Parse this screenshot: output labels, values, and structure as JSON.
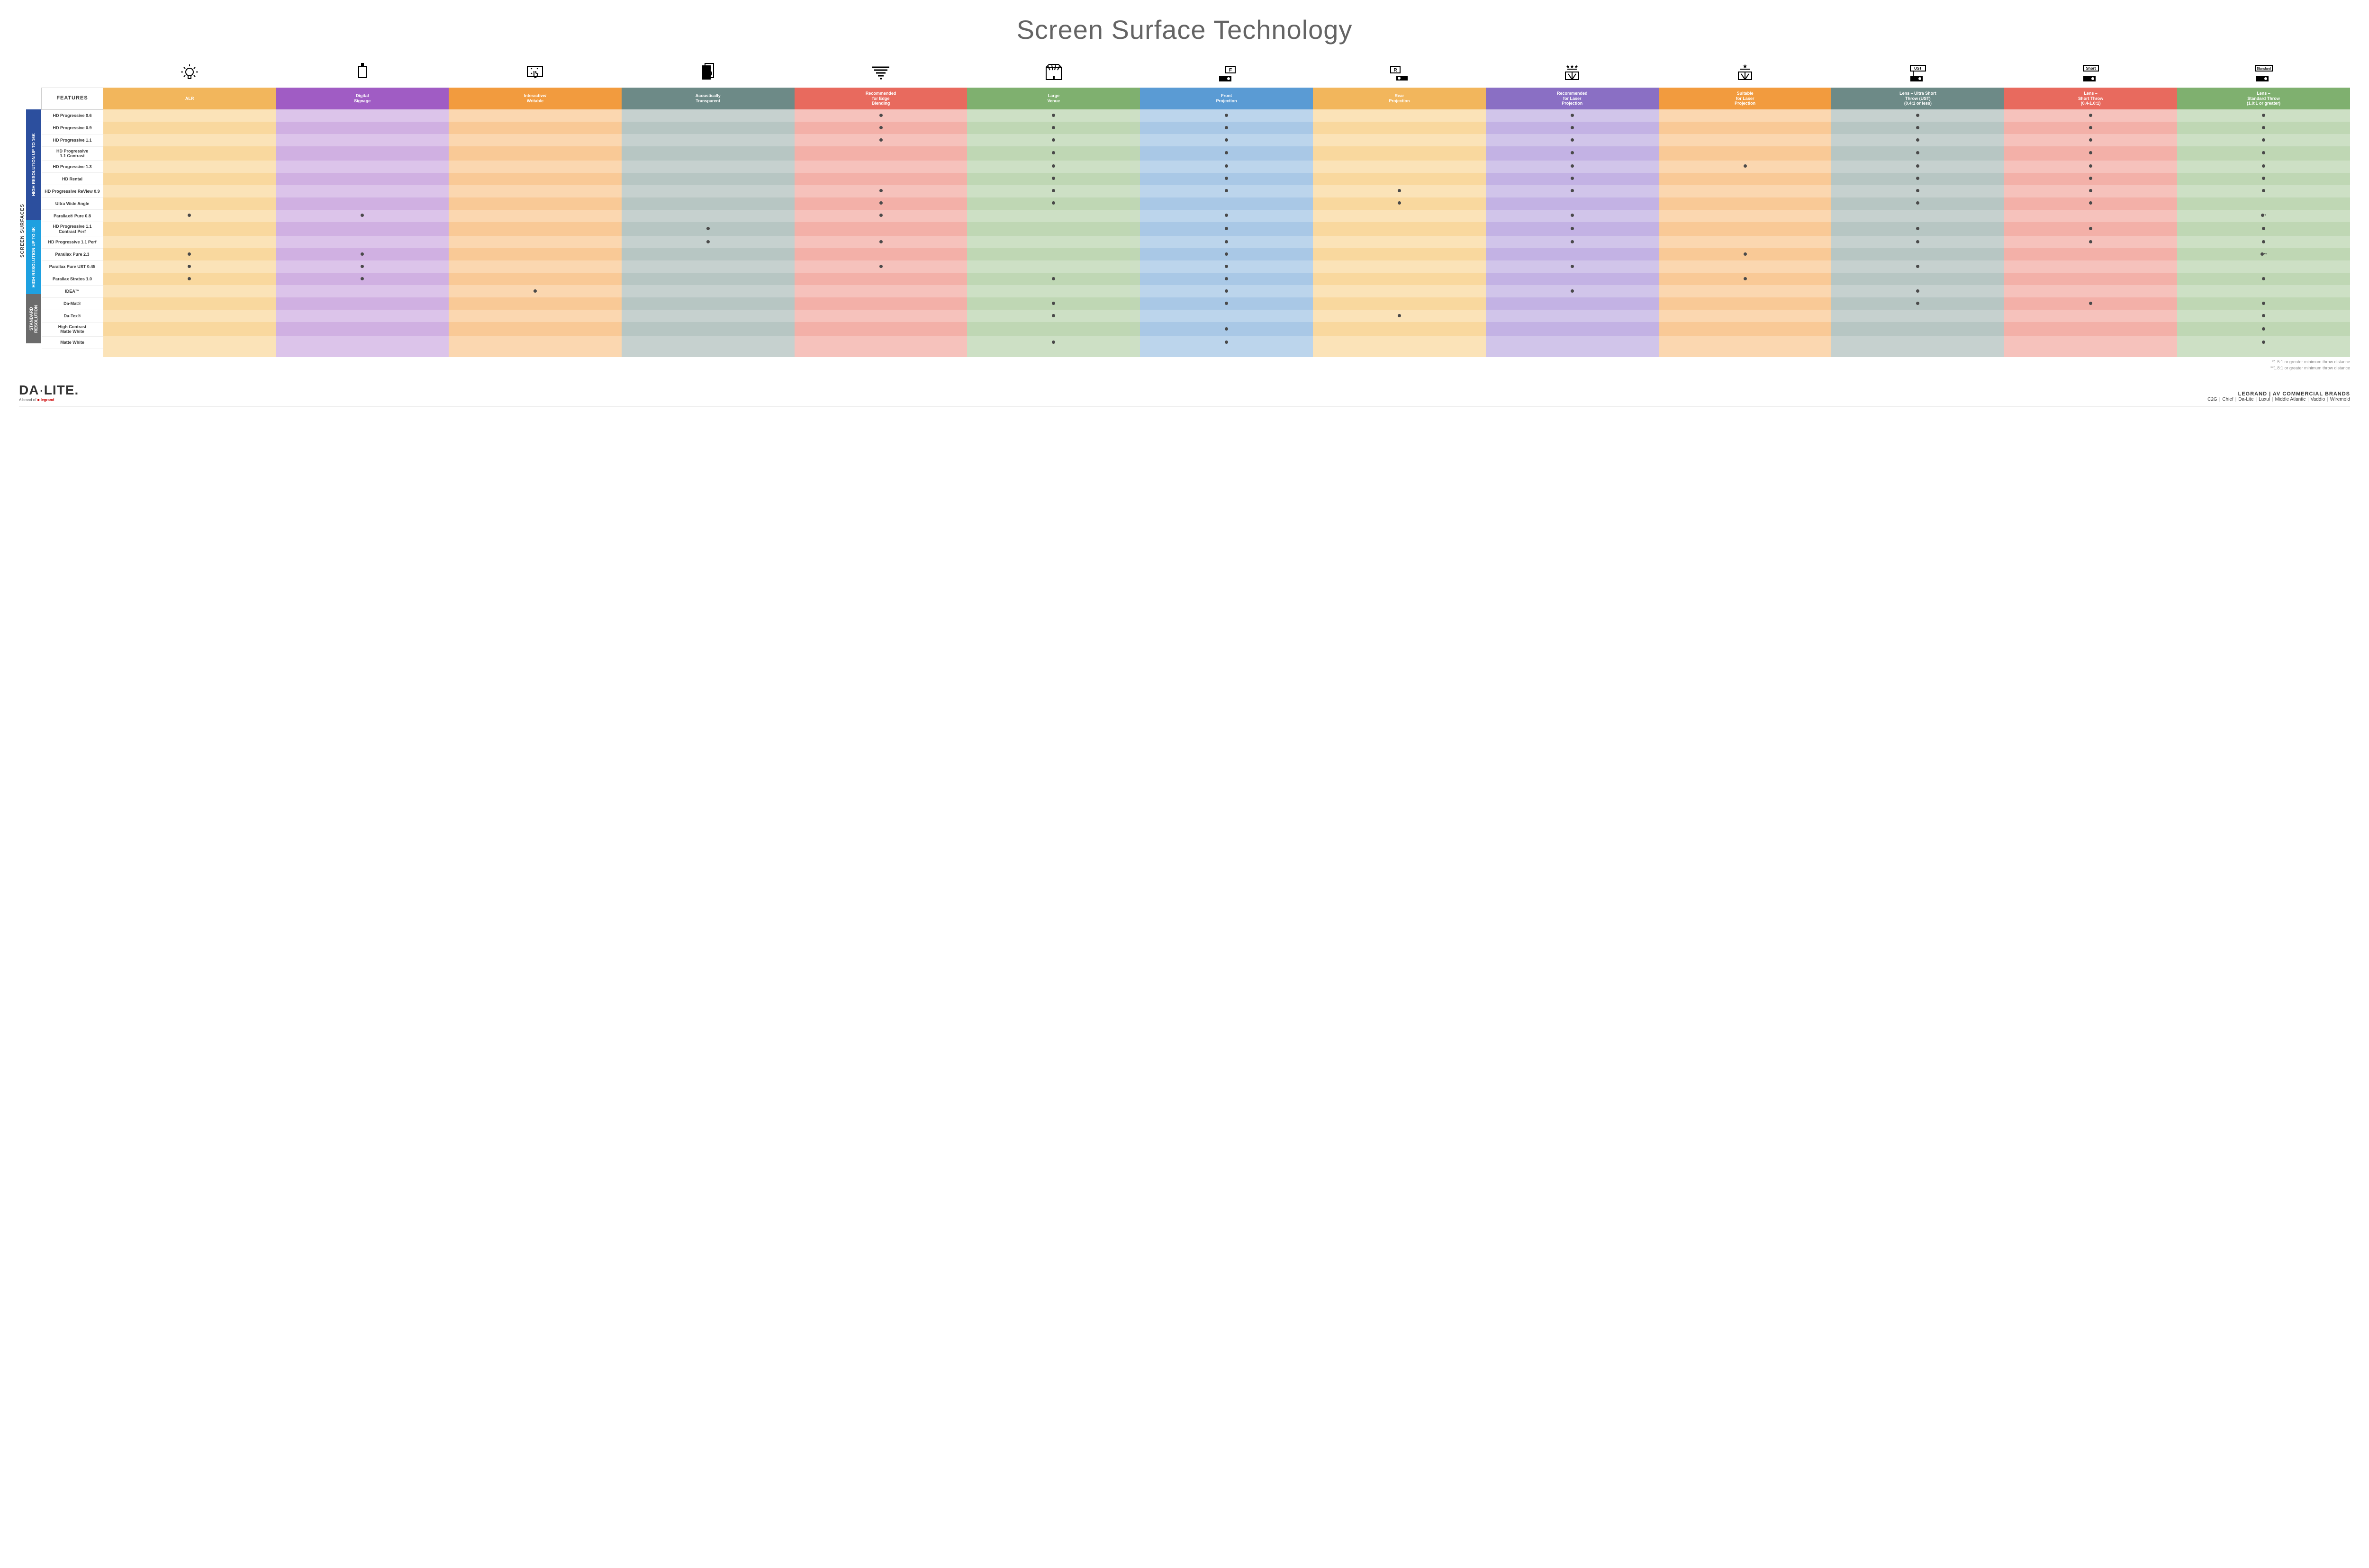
{
  "title": "Screen Surface Technology",
  "colors": {
    "columns": [
      "#f2b65c",
      "#a05cc4",
      "#f29b3e",
      "#6d8a87",
      "#e86a5e",
      "#7fb06f",
      "#5a9bd4",
      "#f2b65c",
      "#8a6fc4",
      "#f29b3e",
      "#6d8a87",
      "#e86a5e",
      "#7fb06f"
    ],
    "lightA": [
      "#fbe3b8",
      "#dcc4ea",
      "#fbd7b0",
      "#c6d1cf",
      "#f6c2bc",
      "#cde0c5",
      "#bcd5ec",
      "#fbe3b8",
      "#d1c5ea",
      "#fbd7b0",
      "#c6d1cf",
      "#f6c2bc",
      "#cde0c5"
    ],
    "lightB": [
      "#f9d89e",
      "#d0b0e2",
      "#f9c996",
      "#b7c6c3",
      "#f3b0a8",
      "#bfd7b4",
      "#a9c8e6",
      "#f9d89e",
      "#c3b2e4",
      "#f9c996",
      "#b7c6c3",
      "#f3b0a8",
      "#bfd7b4"
    ],
    "groups": [
      "#2c4f9e",
      "#1ea0e0",
      "#6b6b6b"
    ],
    "dot": "#4a4a4a",
    "title": "#646464",
    "row_border": "#eeeeee"
  },
  "side_label": "SCREEN SURFACES",
  "columns": [
    {
      "label": "ALR",
      "icon": "bulb"
    },
    {
      "label": "Digital\nSignage",
      "icon": "signage"
    },
    {
      "label": "Interactive/\nWritable",
      "icon": "touch"
    },
    {
      "label": "Acoustically\nTransparent",
      "icon": "speaker"
    },
    {
      "label": "Recommended\nfor Edge\nBlending",
      "icon": "blend"
    },
    {
      "label": "Large\nVenue",
      "icon": "venue"
    },
    {
      "label": "Front\nProjection",
      "icon": "front"
    },
    {
      "label": "Rear\nProjection",
      "icon": "rear"
    },
    {
      "label": "Recommended\nfor Laser\nProjection",
      "icon": "laser3"
    },
    {
      "label": "Suitable\nfor Laser\nProjection",
      "icon": "laser1"
    },
    {
      "label": "Lens – Ultra Short\nThrow (UST)\n(0.4:1 or less)",
      "icon": "ust"
    },
    {
      "label": "Lens –\nShort Throw\n(0.4-1.0:1)",
      "icon": "short"
    },
    {
      "label": "Lens –\nStandard Throw\n(1.0:1 or greater)",
      "icon": "std"
    }
  ],
  "features_header": "FEATURES",
  "groups": [
    {
      "label": "HIGH RESOLUTION UP TO 16K",
      "rows": 9
    },
    {
      "label": "HIGH RESOLUTION UP TO 4K",
      "rows": 6
    },
    {
      "label": "STANDARD\nRESOLUTION",
      "rows": 4
    }
  ],
  "rows": [
    {
      "label": "HD Progressive 0.6",
      "cells": [
        "",
        "",
        "",
        "",
        "•",
        "•",
        "•",
        "",
        "•",
        "",
        "•",
        "•",
        "•"
      ]
    },
    {
      "label": "HD Progressive 0.9",
      "cells": [
        "",
        "",
        "",
        "",
        "•",
        "•",
        "•",
        "",
        "•",
        "",
        "•",
        "•",
        "•"
      ]
    },
    {
      "label": "HD Progressive 1.1",
      "cells": [
        "",
        "",
        "",
        "",
        "•",
        "•",
        "•",
        "",
        "•",
        "",
        "•",
        "•",
        "•"
      ]
    },
    {
      "label": "HD Progressive\n1.1 Contrast",
      "cells": [
        "",
        "",
        "",
        "",
        "",
        "•",
        "•",
        "",
        "•",
        "",
        "•",
        "•",
        "•"
      ]
    },
    {
      "label": "HD Progressive 1.3",
      "cells": [
        "",
        "",
        "",
        "",
        "",
        "•",
        "•",
        "",
        "•",
        "•",
        "•",
        "•",
        "•"
      ]
    },
    {
      "label": "HD Rental",
      "cells": [
        "",
        "",
        "",
        "",
        "",
        "•",
        "•",
        "",
        "•",
        "",
        "•",
        "•",
        "•"
      ]
    },
    {
      "label": "HD Progressive ReView 0.9",
      "cells": [
        "",
        "",
        "",
        "",
        "•",
        "•",
        "•",
        "•",
        "•",
        "",
        "•",
        "•",
        "•"
      ]
    },
    {
      "label": "Ultra Wide Angle",
      "cells": [
        "",
        "",
        "",
        "",
        "•",
        "•",
        "",
        "•",
        "",
        "",
        "•",
        "•",
        ""
      ]
    },
    {
      "label": "Parallax® Pure 0.8",
      "cells": [
        "•",
        "•",
        "",
        "",
        "•",
        "",
        "•",
        "",
        "•",
        "",
        "",
        "",
        "•*"
      ]
    },
    {
      "label": "HD Progressive 1.1\nContrast Perf",
      "cells": [
        "",
        "",
        "",
        "•",
        "",
        "",
        "•",
        "",
        "•",
        "",
        "•",
        "•",
        "•"
      ]
    },
    {
      "label": "HD Progressive 1.1 Perf",
      "cells": [
        "",
        "",
        "",
        "•",
        "•",
        "",
        "•",
        "",
        "•",
        "",
        "•",
        "•",
        "•"
      ]
    },
    {
      "label": "Parallax Pure 2.3",
      "cells": [
        "•",
        "•",
        "",
        "",
        "",
        "",
        "•",
        "",
        "",
        "•",
        "",
        "",
        "•**"
      ]
    },
    {
      "label": "Parallax Pure UST 0.45",
      "cells": [
        "•",
        "•",
        "",
        "",
        "•",
        "",
        "•",
        "",
        "•",
        "",
        "•",
        "",
        ""
      ]
    },
    {
      "label": "Parallax Stratos 1.0",
      "cells": [
        "•",
        "•",
        "",
        "",
        "",
        "•",
        "•",
        "",
        "",
        "•",
        "",
        "",
        "•"
      ]
    },
    {
      "label": "IDEA™",
      "cells": [
        "",
        "",
        "•",
        "",
        "",
        "",
        "•",
        "",
        "•",
        "",
        "•",
        "",
        ""
      ]
    },
    {
      "label": "Da-Mat®",
      "cells": [
        "",
        "",
        "",
        "",
        "",
        "•",
        "•",
        "",
        "",
        "",
        "•",
        "•",
        "•"
      ]
    },
    {
      "label": "Da-Tex®",
      "cells": [
        "",
        "",
        "",
        "",
        "",
        "•",
        "",
        "•",
        "",
        "",
        "",
        "",
        "•"
      ]
    },
    {
      "label": "High Contrast\nMatte White",
      "cells": [
        "",
        "",
        "",
        "",
        "",
        "",
        "•",
        "",
        "",
        "",
        "",
        "",
        "•"
      ]
    },
    {
      "label": "Matte White",
      "cells": [
        "",
        "",
        "",
        "",
        "",
        "•",
        "•",
        "",
        "",
        "",
        "",
        "",
        "•"
      ]
    }
  ],
  "footnotes": [
    "*1.5:1 or greater minimum throw distance",
    "**1.8:1 or greater minimum throw distance"
  ],
  "footer": {
    "logo_main": "DA·LITE.",
    "logo_sub_pre": "A brand of ",
    "logo_sub_brand": "legrand",
    "brands_title": "LEGRAND | AV COMMERCIAL BRANDS",
    "brands": [
      "C2G",
      "Chief",
      "Da-Lite",
      "Luxul",
      "Middle Atlantic",
      "Vaddio",
      "Wiremold"
    ]
  },
  "icon_labels": {
    "ust": "UST",
    "short": "Short",
    "std": "Standard",
    "front": "F",
    "rear": "R"
  }
}
